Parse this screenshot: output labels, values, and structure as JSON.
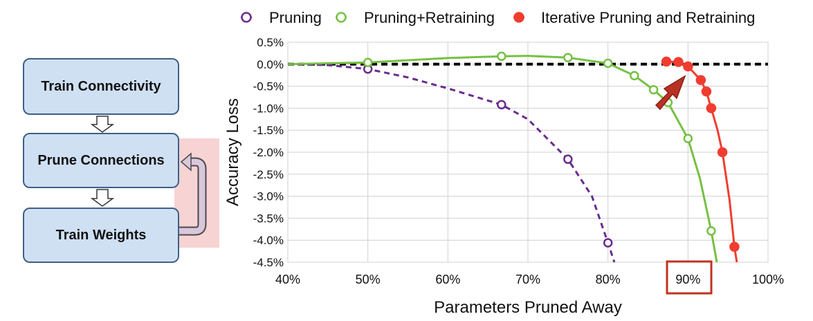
{
  "flow": {
    "steps": [
      "Train Connectivity",
      "Prune Connections",
      "Train Weights"
    ]
  },
  "chart_data": {
    "type": "line",
    "title": "",
    "xlabel": "Parameters Pruned Away",
    "ylabel": "Accuracy Loss",
    "xlim": [
      40,
      100
    ],
    "ylim": [
      -4.5,
      0.5
    ],
    "x_ticks": [
      "40%",
      "50%",
      "60%",
      "70%",
      "80%",
      "90%",
      "100%"
    ],
    "y_ticks": [
      "0.5%",
      "0.0%",
      "-0.5%",
      "-1.0%",
      "-1.5%",
      "-2.0%",
      "-2.5%",
      "-3.0%",
      "-3.5%",
      "-4.0%",
      "-4.5%"
    ],
    "grid": true,
    "legend_position": "top",
    "highlight_label": "90%",
    "series": [
      {
        "name": "Pruning",
        "color": "#6a2c8e",
        "style": "dashed",
        "marker": "open-circle",
        "points": [
          [
            50,
            -0.11
          ],
          [
            66.7,
            -0.92
          ],
          [
            75,
            -2.16
          ],
          [
            80,
            -4.06
          ]
        ],
        "curve": [
          [
            40,
            0
          ],
          [
            45,
            -0.02
          ],
          [
            50,
            -0.11
          ],
          [
            55,
            -0.3
          ],
          [
            60,
            -0.55
          ],
          [
            66.7,
            -0.92
          ],
          [
            70,
            -1.25
          ],
          [
            75,
            -2.16
          ],
          [
            78,
            -3.0
          ],
          [
            80,
            -4.06
          ],
          [
            80.8,
            -4.5
          ]
        ]
      },
      {
        "name": "Pruning+Retraining",
        "color": "#76c043",
        "style": "solid",
        "marker": "open-circle",
        "points": [
          [
            50,
            0.04
          ],
          [
            66.7,
            0.18
          ],
          [
            75,
            0.15
          ],
          [
            80,
            0.02
          ],
          [
            83.3,
            -0.26
          ],
          [
            85.7,
            -0.58
          ],
          [
            87.5,
            -0.87
          ],
          [
            90,
            -1.69
          ],
          [
            92.9,
            -3.79
          ]
        ],
        "curve": [
          [
            40,
            0
          ],
          [
            45,
            0.02
          ],
          [
            50,
            0.04
          ],
          [
            60,
            0.14
          ],
          [
            66.7,
            0.18
          ],
          [
            70,
            0.19
          ],
          [
            75,
            0.15
          ],
          [
            80,
            0.02
          ],
          [
            83.3,
            -0.26
          ],
          [
            85.7,
            -0.58
          ],
          [
            87.5,
            -0.87
          ],
          [
            90,
            -1.69
          ],
          [
            91.5,
            -2.6
          ],
          [
            92.9,
            -3.79
          ],
          [
            93.6,
            -4.5
          ]
        ]
      },
      {
        "name": "Iterative Pruning and Retraining",
        "color": "#f03d2f",
        "style": "solid",
        "marker": "filled-circle",
        "points": [
          [
            87.3,
            0.06
          ],
          [
            88.8,
            0.05
          ],
          [
            90,
            -0.05
          ],
          [
            91.6,
            -0.36
          ],
          [
            92.3,
            -0.62
          ],
          [
            92.9,
            -1.0
          ],
          [
            94.3,
            -2.0
          ],
          [
            95.8,
            -4.15
          ]
        ],
        "curve": [
          [
            87.3,
            0.06
          ],
          [
            88.8,
            0.05
          ],
          [
            90,
            -0.05
          ],
          [
            91.6,
            -0.36
          ],
          [
            92.3,
            -0.62
          ],
          [
            92.9,
            -1.0
          ],
          [
            93.7,
            -1.5
          ],
          [
            94.3,
            -2.0
          ],
          [
            95.2,
            -3.1
          ],
          [
            95.8,
            -4.15
          ],
          [
            96.1,
            -4.5
          ]
        ]
      }
    ]
  }
}
